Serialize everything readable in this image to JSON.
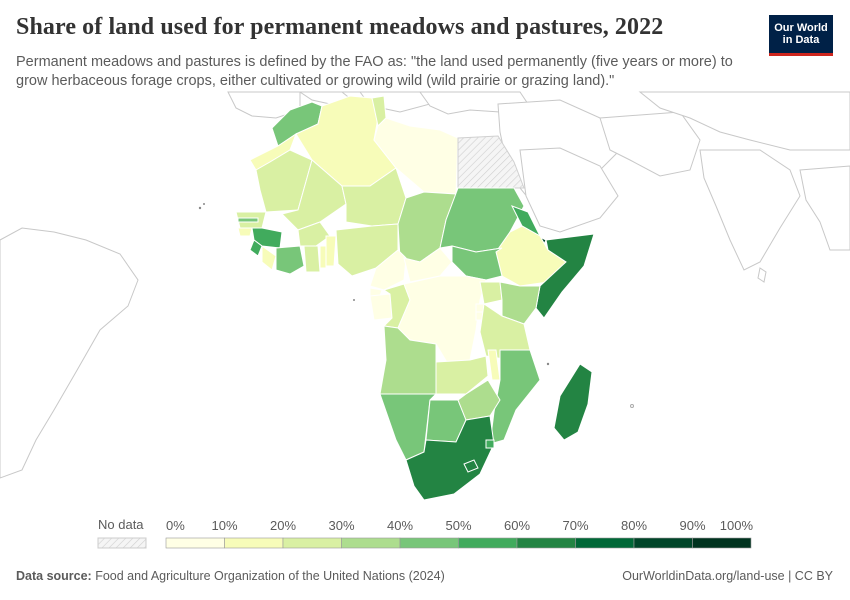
{
  "header": {
    "title": "Share of land used for permanent meadows and pastures, 2022",
    "subtitle": "Permanent meadows and pastures is defined by the FAO as: \"the land used permanently (five years or more) to grow herbaceous forage crops, either cultivated or growing wild (wild prairie or grazing land).\"",
    "logo_line1": "Our World",
    "logo_line2": "in Data"
  },
  "legend": {
    "no_data_label": "No data",
    "ticks": [
      "0%",
      "10%",
      "20%",
      "30%",
      "40%",
      "50%",
      "60%",
      "70%",
      "80%",
      "90%",
      "100%"
    ],
    "colors": [
      "#ffffe5",
      "#f7fcb9",
      "#d9f0a3",
      "#addd8e",
      "#78c679",
      "#41ab5d",
      "#238443",
      "#006837",
      "#004529",
      "#00331f"
    ]
  },
  "footer": {
    "source_label": "Data source:",
    "source_text": "Food and Agriculture Organization of the United Nations (2024)",
    "url_text": "OurWorldinData.org/land-use | CC BY"
  },
  "colors": {
    "no_data_fill": "#eeeeee",
    "outline_land": "#ffffff",
    "border": "#bbbbbb"
  }
}
